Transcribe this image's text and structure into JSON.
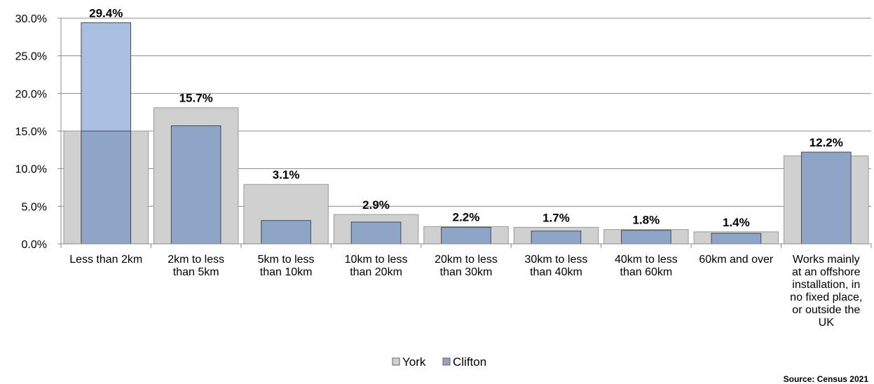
{
  "chart_data": {
    "type": "bar",
    "categories": [
      "Less than 2km",
      "2km to less than 5km",
      "5km to less than 10km",
      "10km to less than 20km",
      "20km to less than 30km",
      "30km to less than 40km",
      "40km to less than 60km",
      "60km and over",
      "Works mainly at an offshore installation, in no fixed place, or outside the UK"
    ],
    "category_lines": [
      [
        "Less than 2km"
      ],
      [
        "2km to less",
        "than 5km"
      ],
      [
        "5km to less",
        "than 10km"
      ],
      [
        "10km to less",
        "than 20km"
      ],
      [
        "20km to less",
        "than 30km"
      ],
      [
        "30km to less",
        "than 40km"
      ],
      [
        "40km to less",
        "than 60km"
      ],
      [
        "60km and over"
      ],
      [
        "Works mainly",
        "at an offshore",
        "installation, in",
        "no fixed place,",
        "or outside the",
        "UK"
      ]
    ],
    "series": [
      {
        "name": "York",
        "values": [
          15.0,
          18.1,
          7.9,
          3.9,
          2.3,
          2.2,
          1.9,
          1.6,
          11.7
        ],
        "color": "#d0d0d0"
      },
      {
        "name": "Clifton",
        "values": [
          29.4,
          15.7,
          3.1,
          2.9,
          2.2,
          1.7,
          1.8,
          1.4,
          12.2
        ],
        "color": "#8ea5c6"
      }
    ],
    "data_labels": [
      "29.4%",
      "15.7%",
      "3.1%",
      "2.9%",
      "2.2%",
      "1.7%",
      "1.8%",
      "1.4%",
      "12.2%"
    ],
    "y_ticks": [
      "0.0%",
      "5.0%",
      "10.0%",
      "15.0%",
      "20.0%",
      "25.0%",
      "30.0%"
    ],
    "ylim": [
      0,
      30
    ],
    "grid": true,
    "legend": "bottom-center",
    "source": "Source: Census 2021"
  }
}
